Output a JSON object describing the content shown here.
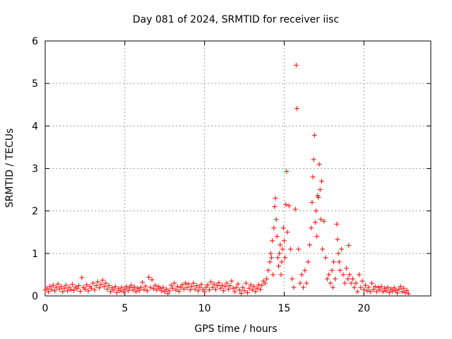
{
  "chart_data": {
    "type": "scatter",
    "title": "Day 081 of 2024, SRMTID for receiver iisc",
    "xlabel": "GPS time / hours",
    "ylabel": "SRMTID / TECUs",
    "xlim": [
      0,
      24.2
    ],
    "ylim": [
      0,
      6
    ],
    "xticks": [
      0,
      5,
      10,
      15,
      20
    ],
    "yticks": [
      0,
      1,
      2,
      3,
      4,
      5,
      6
    ],
    "xtick_labels": [
      "0",
      "5",
      "10",
      "15",
      "20"
    ],
    "ytick_labels": [
      "0",
      "1",
      "2",
      "3",
      "4",
      "5",
      "6"
    ],
    "grid": true,
    "marker": "+",
    "marker_color": "#ff0000",
    "series": [
      {
        "name": "SRMTID",
        "points": [
          [
            0.0,
            0.14
          ],
          [
            0.1,
            0.18
          ],
          [
            0.2,
            0.1
          ],
          [
            0.3,
            0.22
          ],
          [
            0.4,
            0.15
          ],
          [
            0.5,
            0.25
          ],
          [
            0.6,
            0.12
          ],
          [
            0.7,
            0.2
          ],
          [
            0.8,
            0.28
          ],
          [
            0.9,
            0.16
          ],
          [
            1.0,
            0.22
          ],
          [
            1.1,
            0.1
          ],
          [
            1.2,
            0.18
          ],
          [
            1.3,
            0.25
          ],
          [
            1.4,
            0.12
          ],
          [
            1.5,
            0.2
          ],
          [
            1.6,
            0.15
          ],
          [
            1.7,
            0.27
          ],
          [
            1.8,
            0.13
          ],
          [
            1.9,
            0.21
          ],
          [
            2.0,
            0.17
          ],
          [
            2.1,
            0.24
          ],
          [
            2.2,
            0.11
          ],
          [
            2.3,
            0.43
          ],
          [
            2.4,
            0.2
          ],
          [
            2.5,
            0.16
          ],
          [
            2.6,
            0.26
          ],
          [
            2.7,
            0.12
          ],
          [
            2.8,
            0.22
          ],
          [
            2.9,
            0.18
          ],
          [
            3.0,
            0.3
          ],
          [
            3.1,
            0.14
          ],
          [
            3.2,
            0.24
          ],
          [
            3.3,
            0.33
          ],
          [
            3.4,
            0.19
          ],
          [
            3.5,
            0.27
          ],
          [
            3.6,
            0.37
          ],
          [
            3.7,
            0.22
          ],
          [
            3.8,
            0.3
          ],
          [
            3.9,
            0.16
          ],
          [
            4.0,
            0.24
          ],
          [
            4.1,
            0.1
          ],
          [
            4.2,
            0.19
          ],
          [
            4.3,
            0.14
          ],
          [
            4.4,
            0.22
          ],
          [
            4.5,
            0.08
          ],
          [
            4.6,
            0.17
          ],
          [
            4.7,
            0.12
          ],
          [
            4.8,
            0.2
          ],
          [
            4.9,
            0.1
          ],
          [
            5.0,
            0.16
          ],
          [
            5.1,
            0.22
          ],
          [
            5.2,
            0.12
          ],
          [
            5.3,
            0.19
          ],
          [
            5.4,
            0.25
          ],
          [
            5.5,
            0.14
          ],
          [
            5.6,
            0.21
          ],
          [
            5.7,
            0.1
          ],
          [
            5.8,
            0.18
          ],
          [
            5.9,
            0.13
          ],
          [
            6.0,
            0.2
          ],
          [
            6.1,
            0.32
          ],
          [
            6.2,
            0.15
          ],
          [
            6.3,
            0.23
          ],
          [
            6.4,
            0.12
          ],
          [
            6.5,
            0.44
          ],
          [
            6.6,
            0.2
          ],
          [
            6.7,
            0.38
          ],
          [
            6.8,
            0.17
          ],
          [
            6.9,
            0.25
          ],
          [
            7.0,
            0.14
          ],
          [
            7.1,
            0.22
          ],
          [
            7.2,
            0.18
          ],
          [
            7.3,
            0.12
          ],
          [
            7.4,
            0.2
          ],
          [
            7.5,
            0.1
          ],
          [
            7.6,
            0.16
          ],
          [
            7.7,
            0.05
          ],
          [
            7.8,
            0.12
          ],
          [
            7.9,
            0.25
          ],
          [
            8.0,
            0.18
          ],
          [
            8.1,
            0.3
          ],
          [
            8.2,
            0.14
          ],
          [
            8.3,
            0.22
          ],
          [
            8.4,
            0.11
          ],
          [
            8.5,
            0.2
          ],
          [
            8.6,
            0.26
          ],
          [
            8.7,
            0.16
          ],
          [
            8.8,
            0.3
          ],
          [
            8.9,
            0.2
          ],
          [
            9.0,
            0.28
          ],
          [
            9.1,
            0.14
          ],
          [
            9.2,
            0.22
          ],
          [
            9.3,
            0.3
          ],
          [
            9.4,
            0.16
          ],
          [
            9.5,
            0.24
          ],
          [
            9.6,
            0.12
          ],
          [
            9.7,
            0.2
          ],
          [
            9.8,
            0.27
          ],
          [
            9.9,
            0.15
          ],
          [
            10.0,
            0.1
          ],
          [
            10.1,
            0.2
          ],
          [
            10.2,
            0.26
          ],
          [
            10.3,
            0.14
          ],
          [
            10.4,
            0.33
          ],
          [
            10.5,
            0.2
          ],
          [
            10.6,
            0.28
          ],
          [
            10.7,
            0.15
          ],
          [
            10.8,
            0.24
          ],
          [
            10.9,
            0.31
          ],
          [
            11.0,
            0.18
          ],
          [
            11.1,
            0.25
          ],
          [
            11.2,
            0.12
          ],
          [
            11.3,
            0.22
          ],
          [
            11.4,
            0.3
          ],
          [
            11.5,
            0.16
          ],
          [
            11.6,
            0.24
          ],
          [
            11.7,
            0.35
          ],
          [
            11.8,
            0.18
          ],
          [
            11.9,
            0.1
          ],
          [
            12.0,
            0.2
          ],
          [
            12.1,
            0.28
          ],
          [
            12.2,
            0.14
          ],
          [
            12.3,
            0.06
          ],
          [
            12.4,
            0.2
          ],
          [
            12.5,
            0.12
          ],
          [
            12.6,
            0.3
          ],
          [
            12.7,
            0.08
          ],
          [
            12.8,
            0.18
          ],
          [
            12.9,
            0.26
          ],
          [
            13.0,
            0.14
          ],
          [
            13.1,
            0.22
          ],
          [
            13.2,
            0.1
          ],
          [
            13.3,
            0.18
          ],
          [
            13.4,
            0.26
          ],
          [
            13.5,
            0.15
          ],
          [
            13.6,
            0.25
          ],
          [
            13.7,
            0.35
          ],
          [
            13.8,
            0.3
          ],
          [
            13.9,
            0.4
          ],
          [
            14.0,
            0.6
          ],
          [
            14.1,
            0.8
          ],
          [
            14.15,
            1.0
          ],
          [
            14.2,
            0.9
          ],
          [
            14.25,
            1.3
          ],
          [
            14.3,
            0.5
          ],
          [
            14.35,
            1.6
          ],
          [
            14.4,
            2.1
          ],
          [
            14.45,
            2.3
          ],
          [
            14.5,
            1.8
          ],
          [
            14.55,
            1.4
          ],
          [
            14.6,
            0.9
          ],
          [
            14.65,
            0.7
          ],
          [
            14.7,
            1.0
          ],
          [
            14.75,
            1.2
          ],
          [
            14.8,
            0.5
          ],
          [
            14.85,
            0.8
          ],
          [
            14.9,
            1.1
          ],
          [
            14.95,
            1.6
          ],
          [
            15.0,
            1.3
          ],
          [
            15.05,
            0.9
          ],
          [
            15.1,
            2.15
          ],
          [
            15.15,
            2.93
          ],
          [
            15.2,
            1.5
          ],
          [
            15.3,
            2.12
          ],
          [
            15.4,
            1.1
          ],
          [
            15.5,
            0.4
          ],
          [
            15.6,
            0.2
          ],
          [
            15.7,
            2.04
          ],
          [
            15.75,
            5.43
          ],
          [
            15.8,
            4.41
          ],
          [
            15.9,
            1.1
          ],
          [
            16.0,
            0.3
          ],
          [
            16.1,
            0.5
          ],
          [
            16.2,
            0.2
          ],
          [
            16.3,
            0.6
          ],
          [
            16.4,
            0.3
          ],
          [
            16.5,
            0.8
          ],
          [
            16.6,
            1.2
          ],
          [
            16.7,
            1.6
          ],
          [
            16.75,
            2.2
          ],
          [
            16.8,
            2.8
          ],
          [
            16.85,
            3.21
          ],
          [
            16.9,
            3.78
          ],
          [
            16.95,
            1.73
          ],
          [
            17.0,
            2.0
          ],
          [
            17.05,
            1.4
          ],
          [
            17.1,
            2.36
          ],
          [
            17.15,
            2.32
          ],
          [
            17.2,
            3.1
          ],
          [
            17.25,
            2.5
          ],
          [
            17.3,
            1.8
          ],
          [
            17.35,
            2.7
          ],
          [
            17.4,
            1.1
          ],
          [
            17.5,
            1.76
          ],
          [
            17.6,
            0.9
          ],
          [
            17.7,
            0.4
          ],
          [
            17.8,
            0.5
          ],
          [
            17.9,
            0.3
          ],
          [
            18.0,
            0.6
          ],
          [
            18.05,
            0.2
          ],
          [
            18.1,
            0.8
          ],
          [
            18.2,
            0.4
          ],
          [
            18.3,
            1.69
          ],
          [
            18.35,
            1.33
          ],
          [
            18.4,
            1.0
          ],
          [
            18.45,
            0.8
          ],
          [
            18.5,
            0.6
          ],
          [
            18.6,
            1.1
          ],
          [
            18.7,
            0.5
          ],
          [
            18.8,
            0.3
          ],
          [
            18.9,
            0.65
          ],
          [
            19.0,
            0.4
          ],
          [
            19.05,
            1.19
          ],
          [
            19.1,
            0.5
          ],
          [
            19.2,
            0.3
          ],
          [
            19.3,
            0.4
          ],
          [
            19.4,
            0.2
          ],
          [
            19.5,
            0.3
          ],
          [
            19.6,
            0.1
          ],
          [
            19.7,
            0.5
          ],
          [
            19.8,
            0.2
          ],
          [
            19.9,
            0.35
          ],
          [
            20.0,
            0.15
          ],
          [
            20.1,
            0.25
          ],
          [
            20.2,
            0.12
          ],
          [
            20.3,
            0.2
          ],
          [
            20.4,
            0.1
          ],
          [
            20.5,
            0.3
          ],
          [
            20.6,
            0.15
          ],
          [
            20.7,
            0.22
          ],
          [
            20.8,
            0.1
          ],
          [
            20.9,
            0.2
          ],
          [
            21.0,
            0.14
          ],
          [
            21.1,
            0.22
          ],
          [
            21.2,
            0.1
          ],
          [
            21.3,
            0.18
          ],
          [
            21.4,
            0.12
          ],
          [
            21.5,
            0.2
          ],
          [
            21.6,
            0.08
          ],
          [
            21.7,
            0.16
          ],
          [
            21.8,
            0.11
          ],
          [
            21.9,
            0.19
          ],
          [
            22.0,
            0.13
          ],
          [
            22.1,
            0.07
          ],
          [
            22.2,
            0.16
          ],
          [
            22.3,
            0.22
          ],
          [
            22.4,
            0.1
          ],
          [
            22.5,
            0.18
          ],
          [
            22.6,
            0.08
          ],
          [
            22.7,
            0.13
          ],
          [
            22.8,
            0.05
          ]
        ]
      }
    ]
  }
}
